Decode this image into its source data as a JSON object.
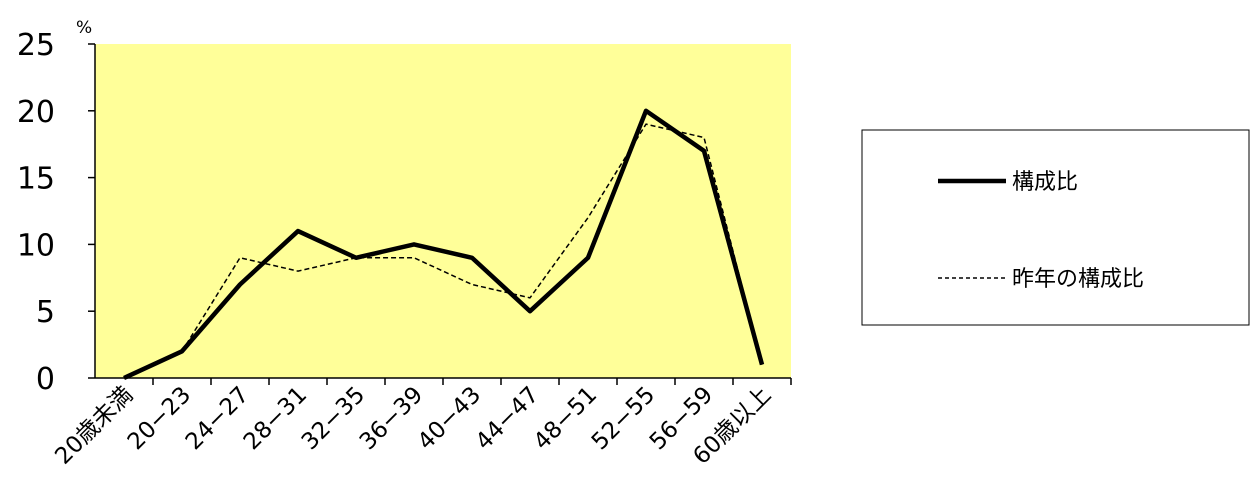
{
  "chart_data": {
    "type": "line",
    "y_unit": "%",
    "categories": [
      "20歳未満",
      "20−23",
      "24−27",
      "28−31",
      "32−35",
      "36−39",
      "40−43",
      "44−47",
      "48−51",
      "52−55",
      "56−59",
      "60歳以上"
    ],
    "series": [
      {
        "name": "構成比",
        "values": [
          0,
          2,
          7,
          11,
          9,
          10,
          9,
          5,
          9,
          20,
          17,
          1
        ],
        "style": "solid"
      },
      {
        "name": "昨年の構成比",
        "values": [
          0,
          2,
          9,
          8,
          9,
          9,
          7,
          6,
          12,
          19,
          18,
          1
        ],
        "style": "dashed"
      }
    ],
    "ylim": [
      0,
      25
    ],
    "yticks": [
      "0",
      "5",
      "10",
      "15",
      "20",
      "25"
    ],
    "grid": false,
    "legend_position": "right",
    "plot_background": "#FFFF99",
    "line_color": "#000000"
  }
}
